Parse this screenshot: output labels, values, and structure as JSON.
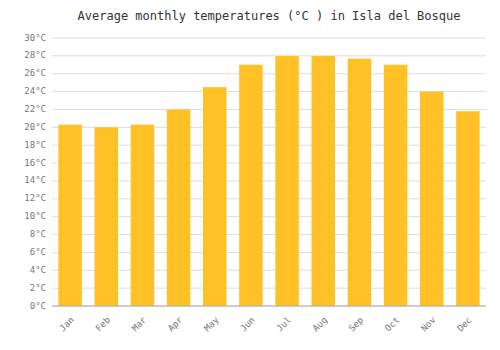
{
  "chart_data": {
    "type": "bar",
    "title": "Average monthly temperatures (°C ) in Isla del Bosque",
    "categories": [
      "Jan",
      "Feb",
      "Mar",
      "Apr",
      "May",
      "Jun",
      "Jul",
      "Aug",
      "Sep",
      "Oct",
      "Nov",
      "Dec"
    ],
    "values": [
      20.3,
      20.0,
      20.3,
      22.0,
      24.5,
      27.0,
      28.0,
      28.0,
      27.7,
      27.0,
      24.0,
      21.8
    ],
    "color": "#FFC125",
    "ylim": [
      0,
      30
    ],
    "yticks": [
      {
        "value": 0,
        "label": "0°C"
      },
      {
        "value": 2,
        "label": "2°C"
      },
      {
        "value": 4,
        "label": "4°C"
      },
      {
        "value": 6,
        "label": "6°C"
      },
      {
        "value": 8,
        "label": "8°C"
      },
      {
        "value": 10,
        "label": "10°C"
      },
      {
        "value": 12,
        "label": "12°C"
      },
      {
        "value": 14,
        "label": "14°C"
      },
      {
        "value": 16,
        "label": "16°C"
      },
      {
        "value": 18,
        "label": "18°C"
      },
      {
        "value": 20,
        "label": "20°C"
      },
      {
        "value": 22,
        "label": "22°C"
      },
      {
        "value": 24,
        "label": "24°C"
      },
      {
        "value": 26,
        "label": "26°C"
      },
      {
        "value": 28,
        "label": "28°C"
      },
      {
        "value": 30,
        "label": "30°C"
      }
    ],
    "grid": true
  }
}
